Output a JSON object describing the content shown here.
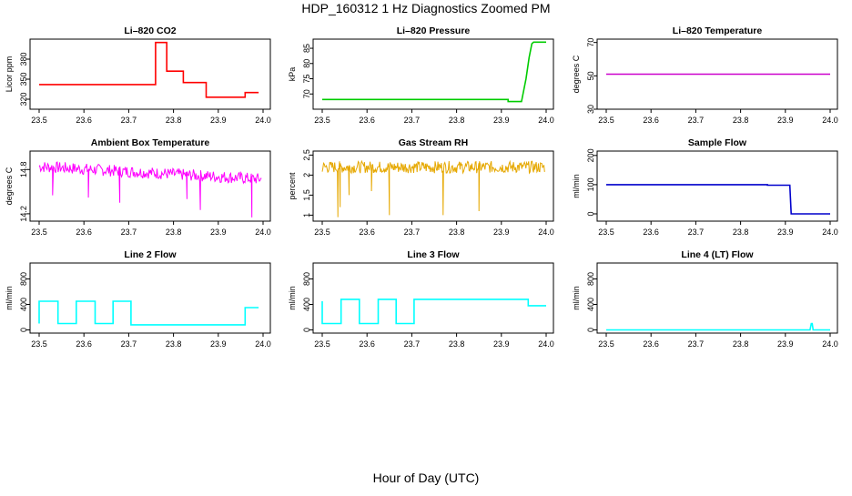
{
  "figure": {
    "title": "HDP_160312  1 Hz Diagnostics Zoomed PM",
    "xlabel": "Hour of Day (UTC)"
  },
  "chart_data": [
    {
      "type": "line",
      "title": "Li–820 CO2",
      "ylabel": "Licor ppm",
      "color": "#ff0000",
      "xlim": [
        23.5,
        24.0
      ],
      "xticks": [
        23.5,
        23.6,
        23.7,
        23.8,
        23.9,
        24.0
      ],
      "ylim": [
        305,
        410
      ],
      "yticks": [
        320,
        350,
        380
      ],
      "series": [
        {
          "step": true,
          "x": [
            23.5,
            23.76,
            23.76,
            23.785,
            23.785,
            23.822,
            23.822,
            23.873,
            23.873,
            23.96,
            23.96,
            23.99
          ],
          "y": [
            342,
            342,
            405,
            405,
            362,
            362,
            345,
            345,
            323,
            323,
            330,
            330
          ]
        }
      ]
    },
    {
      "type": "line",
      "title": "Li–820 Pressure",
      "ylabel": "kPa",
      "color": "#00cc00",
      "xlim": [
        23.5,
        24.0
      ],
      "xticks": [
        23.5,
        23.6,
        23.7,
        23.8,
        23.9,
        24.0
      ],
      "ylim": [
        65,
        88
      ],
      "yticks": [
        70,
        75,
        80,
        85
      ],
      "series": [
        {
          "x": [
            23.5,
            23.915,
            23.915,
            23.945,
            23.955,
            23.962,
            23.968,
            23.972,
            24.0
          ],
          "y": [
            68.2,
            68.2,
            67.5,
            67.5,
            75,
            82,
            86.5,
            87,
            87
          ]
        }
      ]
    },
    {
      "type": "line",
      "title": "Li–820 Temperature",
      "ylabel": "degrees C",
      "color": "#cc00cc",
      "xlim": [
        23.5,
        24.0
      ],
      "xticks": [
        23.5,
        23.6,
        23.7,
        23.8,
        23.9,
        24.0
      ],
      "ylim": [
        30,
        72
      ],
      "yticks": [
        30,
        50,
        70
      ],
      "series": [
        {
          "x": [
            23.5,
            24.0
          ],
          "y": [
            51,
            51
          ]
        }
      ]
    },
    {
      "type": "line",
      "title": "Ambient Box Temperature",
      "ylabel": "degrees C",
      "color": "#ff00ff",
      "xlim": [
        23.5,
        24.0
      ],
      "xticks": [
        23.5,
        23.6,
        23.7,
        23.8,
        23.9,
        24.0
      ],
      "ylim": [
        14.1,
        15.05
      ],
      "yticks": [
        14.2,
        14.8
      ],
      "noise": {
        "start": 14.84,
        "end": 14.67,
        "amp": 0.08,
        "n": 140,
        "spikes": [
          [
            23.68,
            14.35
          ],
          [
            23.83,
            14.4
          ],
          [
            23.86,
            14.25
          ],
          [
            23.975,
            14.15
          ],
          [
            23.53,
            14.45
          ],
          [
            23.61,
            14.42
          ]
        ]
      }
    },
    {
      "type": "line",
      "title": "Gas Stream RH",
      "ylabel": "percent",
      "color": "#e6a800",
      "xlim": [
        23.5,
        24.0
      ],
      "xticks": [
        23.5,
        23.6,
        23.7,
        23.8,
        23.9,
        24.0
      ],
      "ylim": [
        0.85,
        2.6
      ],
      "yticks": [
        1.0,
        1.5,
        2.0,
        2.5
      ],
      "noise": {
        "start": 2.2,
        "end": 2.2,
        "amp": 0.15,
        "n": 160,
        "spikes": [
          [
            23.535,
            0.95
          ],
          [
            23.54,
            1.2
          ],
          [
            23.65,
            1.0
          ],
          [
            23.77,
            1.0
          ],
          [
            23.85,
            1.1
          ],
          [
            23.56,
            1.5
          ],
          [
            23.61,
            1.6
          ]
        ]
      }
    },
    {
      "type": "line",
      "title": "Sample Flow",
      "ylabel": "ml/min",
      "color": "#0000cc",
      "xlim": [
        23.5,
        24.0
      ],
      "xticks": [
        23.5,
        23.6,
        23.7,
        23.8,
        23.9,
        24.0
      ],
      "ylim": [
        -25,
        215
      ],
      "yticks": [
        0,
        100,
        200
      ],
      "series": [
        {
          "x": [
            23.5,
            23.86,
            23.86,
            23.91,
            23.913,
            23.925,
            24.0
          ],
          "y": [
            100,
            100,
            98,
            98,
            0,
            0,
            0
          ]
        }
      ]
    },
    {
      "type": "line",
      "title": "Line 2 Flow",
      "ylabel": "ml/min",
      "color": "#00ffff",
      "xlim": [
        23.5,
        24.0
      ],
      "xticks": [
        23.5,
        23.6,
        23.7,
        23.8,
        23.9,
        24.0
      ],
      "ylim": [
        -50,
        1050
      ],
      "yticks": [
        0,
        400,
        800
      ],
      "series": [
        {
          "step": true,
          "x": [
            23.5,
            23.5,
            23.542,
            23.542,
            23.583,
            23.583,
            23.625,
            23.625,
            23.665,
            23.665,
            23.705,
            23.705,
            23.96,
            23.96,
            23.99
          ],
          "y": [
            100,
            450,
            450,
            100,
            100,
            450,
            450,
            100,
            100,
            450,
            450,
            80,
            80,
            350,
            350
          ]
        }
      ]
    },
    {
      "type": "line",
      "title": "Line 3 Flow",
      "ylabel": "ml/min",
      "color": "#00ffff",
      "xlim": [
        23.5,
        24.0
      ],
      "xticks": [
        23.5,
        23.6,
        23.7,
        23.8,
        23.9,
        24.0
      ],
      "ylim": [
        -50,
        1050
      ],
      "yticks": [
        0,
        400,
        800
      ],
      "series": [
        {
          "step": true,
          "x": [
            23.5,
            23.5,
            23.5,
            23.5,
            23.542,
            23.542,
            23.583,
            23.583,
            23.625,
            23.625,
            23.665,
            23.665,
            23.705,
            23.705,
            23.96,
            23.96,
            24.0
          ],
          "y": [
            100,
            450,
            100,
            100,
            100,
            480,
            480,
            100,
            100,
            480,
            480,
            100,
            100,
            480,
            480,
            380,
            380
          ]
        }
      ]
    },
    {
      "type": "line",
      "title": "Line 4 (LT) Flow",
      "ylabel": "ml/min",
      "color": "#00ffff",
      "xlim": [
        23.5,
        24.0
      ],
      "xticks": [
        23.5,
        23.6,
        23.7,
        23.8,
        23.9,
        24.0
      ],
      "ylim": [
        -50,
        1050
      ],
      "yticks": [
        0,
        400,
        800
      ],
      "series": [
        {
          "x": [
            23.5,
            23.955,
            23.958,
            23.96,
            23.962,
            24.0
          ],
          "y": [
            0,
            0,
            100,
            100,
            0,
            0
          ]
        }
      ]
    }
  ]
}
